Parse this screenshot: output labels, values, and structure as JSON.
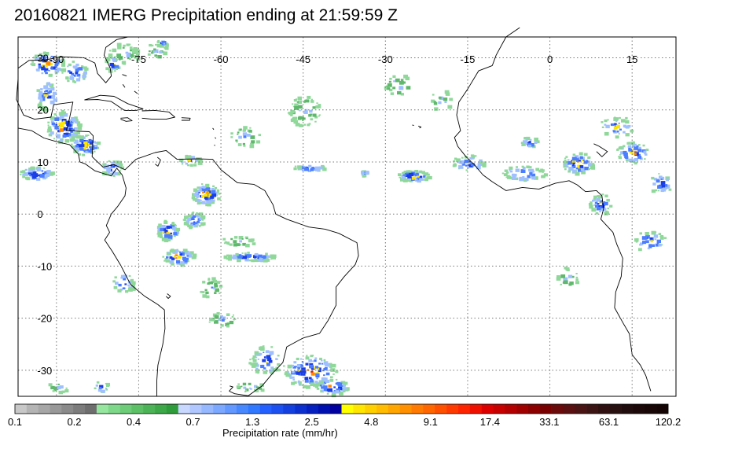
{
  "title": "20160821 IMERG Precipitation ending at 21:59:59 Z",
  "map": {
    "lon_range": [
      -97,
      23
    ],
    "lat_range": [
      -35,
      34
    ],
    "lon_ticks": [
      -90,
      -75,
      -60,
      -45,
      -30,
      -15,
      0,
      15
    ],
    "lat_ticks": [
      30,
      20,
      10,
      0,
      -10,
      -20,
      -30
    ],
    "lon_tick_labels": [
      "-90",
      "-75",
      "-60",
      "-45",
      "-30",
      "-15",
      "0",
      "15"
    ],
    "lat_tick_labels": [
      "30",
      "20",
      "10",
      "0",
      "-10",
      "-20",
      "-30"
    ],
    "grid": true
  },
  "colorbar": {
    "label": "Precipitation rate (mm/hr)",
    "tick_labels": [
      "0.1",
      "0.2",
      "0.4",
      "0.7",
      "1.3",
      "2.5",
      "4.8",
      "9.1",
      "17.4",
      "33.1",
      "63.1",
      "120.2"
    ],
    "colors": [
      "#c8c8c8",
      "#b4b4b4",
      "#a6a6a6",
      "#989898",
      "#8a8a8a",
      "#7c7c7c",
      "#6e6e6e",
      "#96e6a0",
      "#7ed88a",
      "#6ccc78",
      "#5cc066",
      "#4cb456",
      "#3ca848",
      "#2e9c3a",
      "#c8d8ff",
      "#b0c8ff",
      "#96b8ff",
      "#7ca8ff",
      "#6298ff",
      "#4888ff",
      "#3078ff",
      "#2460ff",
      "#1c50f0",
      "#1440e0",
      "#0c30d0",
      "#0620c0",
      "#0010b0",
      "#0000a0",
      "#ffff00",
      "#ffe600",
      "#ffd000",
      "#ffbc00",
      "#ffa600",
      "#ff9000",
      "#ff7a00",
      "#ff6600",
      "#ff5000",
      "#ff3a00",
      "#ff2400",
      "#f01000",
      "#dc0000",
      "#c80000",
      "#b40000",
      "#a00000",
      "#8c0000",
      "#780000",
      "#6a0a0a",
      "#5a1010",
      "#4a1414",
      "#3c1414",
      "#301010",
      "#281010",
      "#200c0c",
      "#1c0808",
      "#180606",
      "#140404"
    ]
  }
}
